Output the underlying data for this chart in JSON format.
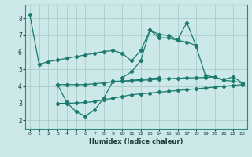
{
  "bg_color": "#cce8e8",
  "grid_color": "#aacccc",
  "line_color": "#1a7a6e",
  "xlabel": "Humidex (Indice chaleur)",
  "x_ticks": [
    0,
    1,
    2,
    3,
    4,
    5,
    6,
    7,
    8,
    9,
    10,
    11,
    12,
    13,
    14,
    15,
    16,
    17,
    18,
    19,
    20,
    21,
    22,
    23
  ],
  "ylim": [
    1.5,
    8.8
  ],
  "xlim": [
    -0.5,
    23.5
  ],
  "line1_x": [
    0,
    1,
    2,
    3,
    4,
    5,
    6,
    7,
    8,
    9,
    10,
    11,
    12,
    13,
    14,
    15,
    16,
    17,
    18
  ],
  "line1_y": [
    8.2,
    5.3,
    5.45,
    5.55,
    5.65,
    5.75,
    5.85,
    5.95,
    6.05,
    6.1,
    5.95,
    5.5,
    6.1,
    7.3,
    6.85,
    6.85,
    6.7,
    6.6,
    6.4
  ],
  "line2_x": [
    3,
    4,
    5,
    6,
    7,
    8,
    9,
    10,
    11,
    12,
    13,
    14
  ],
  "line2_y": [
    4.1,
    3.05,
    2.5,
    2.25,
    2.6,
    3.3,
    4.3,
    4.3,
    4.35,
    4.4,
    4.45,
    4.5
  ],
  "line3_x": [
    3,
    4,
    5,
    6,
    7,
    8,
    9,
    10,
    11,
    12,
    13,
    14,
    15,
    16,
    17,
    18,
    19,
    20,
    21,
    22,
    23
  ],
  "line3_y": [
    4.1,
    4.1,
    4.1,
    4.1,
    4.15,
    4.2,
    4.25,
    4.3,
    4.32,
    4.35,
    4.38,
    4.42,
    4.45,
    4.47,
    4.5,
    4.5,
    4.52,
    4.55,
    4.35,
    4.3,
    4.2
  ],
  "line4_x": [
    3,
    4,
    5,
    6,
    7,
    8,
    9,
    10,
    11,
    12,
    13,
    14,
    15,
    16,
    17,
    18,
    19,
    20,
    21,
    22,
    23
  ],
  "line4_y": [
    3.0,
    3.0,
    3.02,
    3.05,
    3.1,
    3.2,
    3.3,
    3.4,
    3.5,
    3.55,
    3.6,
    3.65,
    3.7,
    3.75,
    3.8,
    3.85,
    3.9,
    3.95,
    4.0,
    4.05,
    4.1
  ],
  "line5_x": [
    10,
    11,
    12,
    13,
    14,
    15,
    16,
    17,
    18,
    19,
    21,
    22,
    23
  ],
  "line5_y": [
    4.5,
    4.85,
    5.5,
    7.3,
    7.05,
    7.0,
    6.75,
    7.75,
    6.35,
    4.65,
    4.4,
    4.55,
    4.2
  ]
}
